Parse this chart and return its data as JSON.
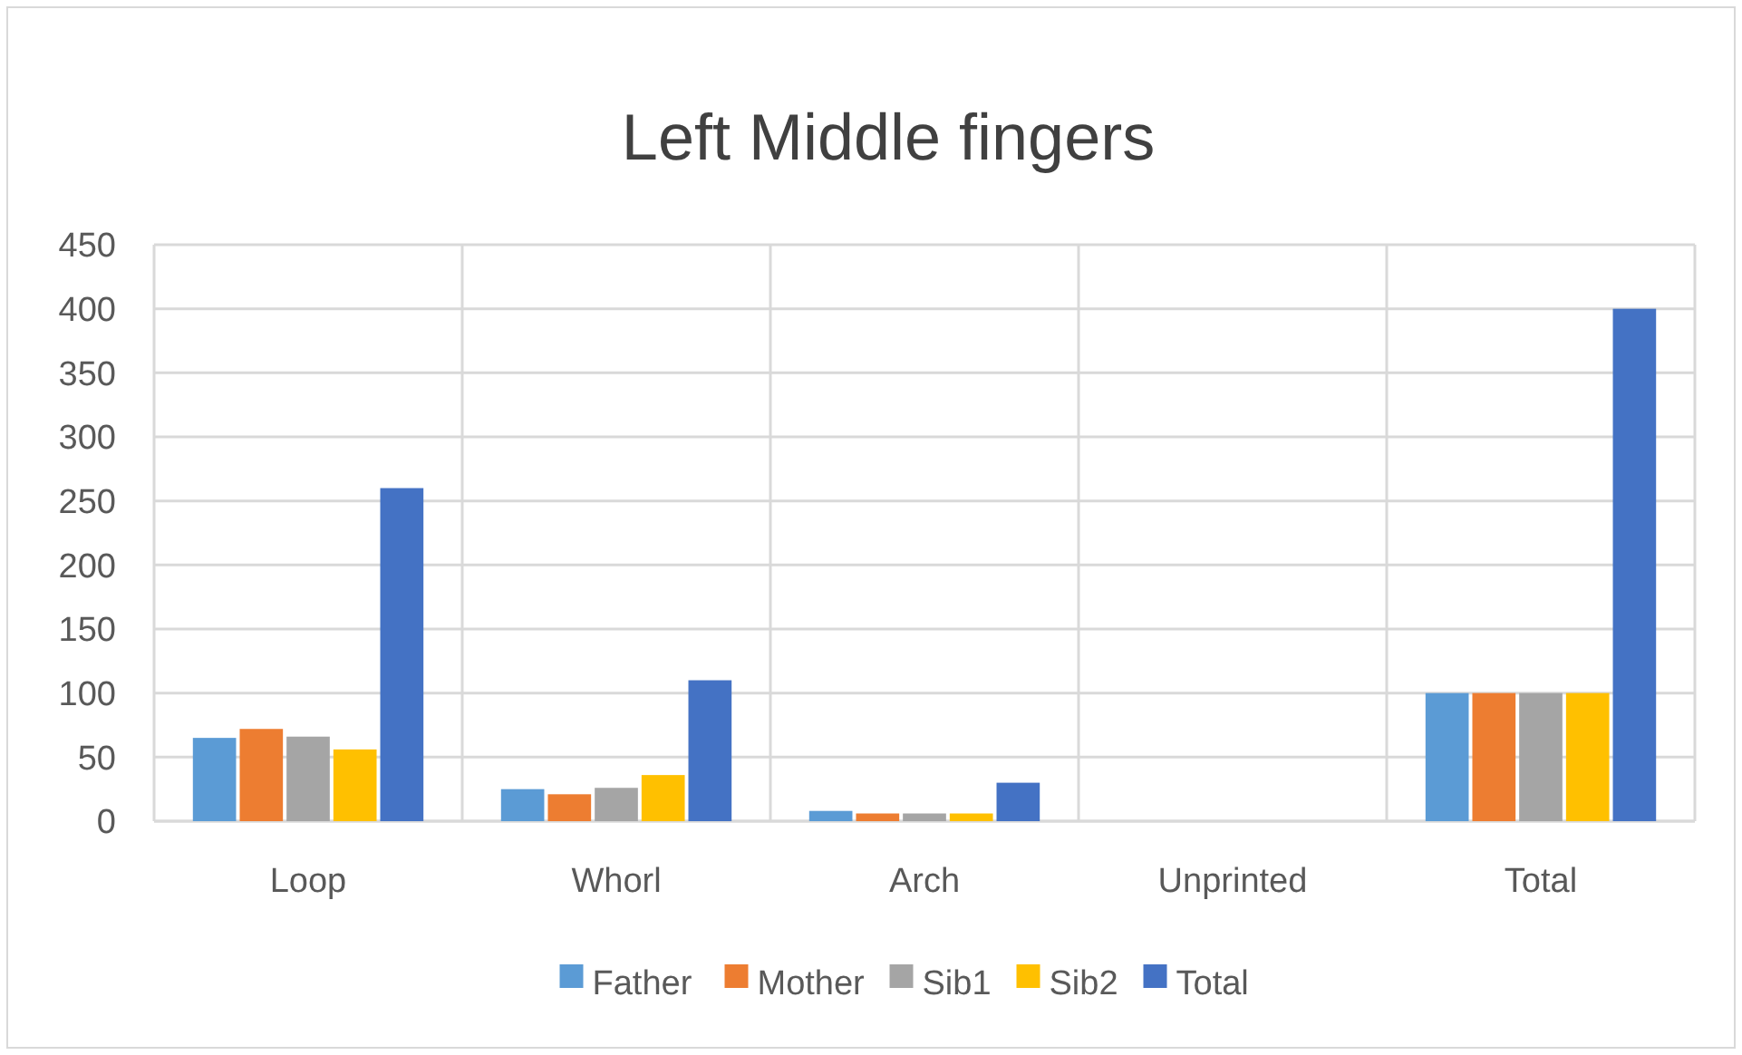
{
  "chart_data": {
    "type": "bar",
    "title": "Left Middle fingers",
    "categories": [
      "Loop",
      "Whorl",
      "Arch",
      "Unprinted",
      "Total"
    ],
    "series": [
      {
        "name": "Father",
        "color": "#5b9bd5",
        "values": [
          65,
          25,
          8,
          0,
          100
        ]
      },
      {
        "name": "Mother",
        "color": "#ed7d31",
        "values": [
          72,
          21,
          6,
          0,
          100
        ]
      },
      {
        "name": "Sib1",
        "color": "#a5a5a5",
        "values": [
          66,
          26,
          6,
          0,
          100
        ]
      },
      {
        "name": "Sib2",
        "color": "#ffc000",
        "values": [
          56,
          36,
          6,
          0,
          100
        ]
      },
      {
        "name": "Total",
        "color": "#4472c4",
        "values": [
          260,
          110,
          30,
          0,
          400
        ]
      }
    ],
    "ylim": [
      0,
      450
    ],
    "yticks": [
      0,
      50,
      100,
      150,
      200,
      250,
      300,
      350,
      400,
      450
    ],
    "grid": true,
    "legend": "bottom"
  }
}
